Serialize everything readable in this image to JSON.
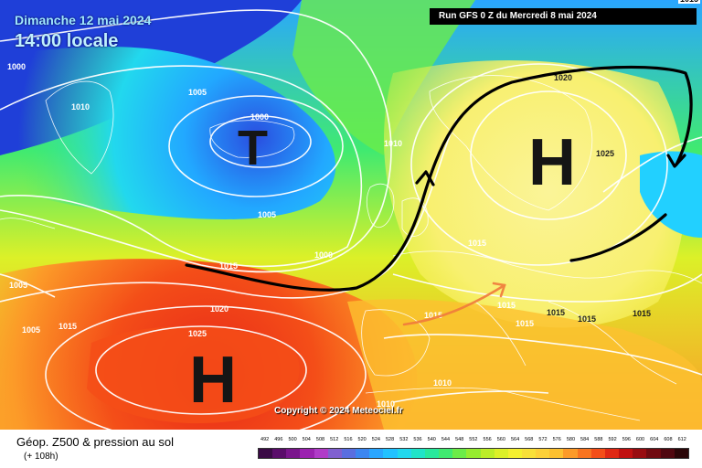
{
  "header": {
    "date": "Dimanche 12 mai 2024",
    "time": "14:00 locale",
    "run": "Run GFS 0 Z du Mercredi 8 mai 2024",
    "corner": "1015"
  },
  "copyright": "Copyright © 2024 Meteociel.fr",
  "legend": {
    "title": "Géop. Z500 & pression au sol",
    "subtitle": "(+ 108h)",
    "scale_values": [
      "492",
      "496",
      "500",
      "504",
      "508",
      "512",
      "516",
      "520",
      "524",
      "528",
      "532",
      "536",
      "540",
      "544",
      "548",
      "552",
      "556",
      "560",
      "564",
      "568",
      "572",
      "576",
      "580",
      "584",
      "588",
      "592",
      "596",
      "600",
      "604",
      "608",
      "612"
    ],
    "scale_colors": [
      "#3a0a45",
      "#5a0d6a",
      "#7a168c",
      "#9b22b0",
      "#b03cc8",
      "#8060d0",
      "#5a6ee0",
      "#3c86f0",
      "#2aa6ff",
      "#22c2ff",
      "#22d8ee",
      "#20e4c8",
      "#28e89c",
      "#40ea70",
      "#6cec48",
      "#96ec30",
      "#bcee28",
      "#dcf028",
      "#f4f030",
      "#f8e038",
      "#fcd038",
      "#fcc030",
      "#fc9a28",
      "#f87420",
      "#f44e18",
      "#e02814",
      "#c01010",
      "#980c10",
      "#700a10",
      "#500810",
      "#2a0608"
    ]
  },
  "pressure_centers": [
    {
      "letter": "T",
      "kind": "low"
    },
    {
      "letter": "H",
      "kind": "high"
    },
    {
      "letter": "H",
      "kind": "high"
    }
  ],
  "isobar_labels": [
    "1000",
    "1005",
    "1010",
    "1000",
    "1005",
    "1015",
    "1010",
    "1005",
    "1000",
    "1020",
    "1025",
    "1015",
    "1015",
    "1015",
    "1015",
    "1005",
    "1010",
    "1015",
    "1020",
    "1025",
    "1015",
    "1010",
    "1010",
    "1015",
    "1015"
  ],
  "colors": {
    "deep_blue": "#1f3fd8",
    "cyan": "#22d0ff",
    "green": "#6cec48",
    "yellow": "#f8f070",
    "orange": "#fc9a28",
    "red": "#e82818",
    "jet_stream": "#000000",
    "warm_advection_arrow": "#f07a3c"
  }
}
